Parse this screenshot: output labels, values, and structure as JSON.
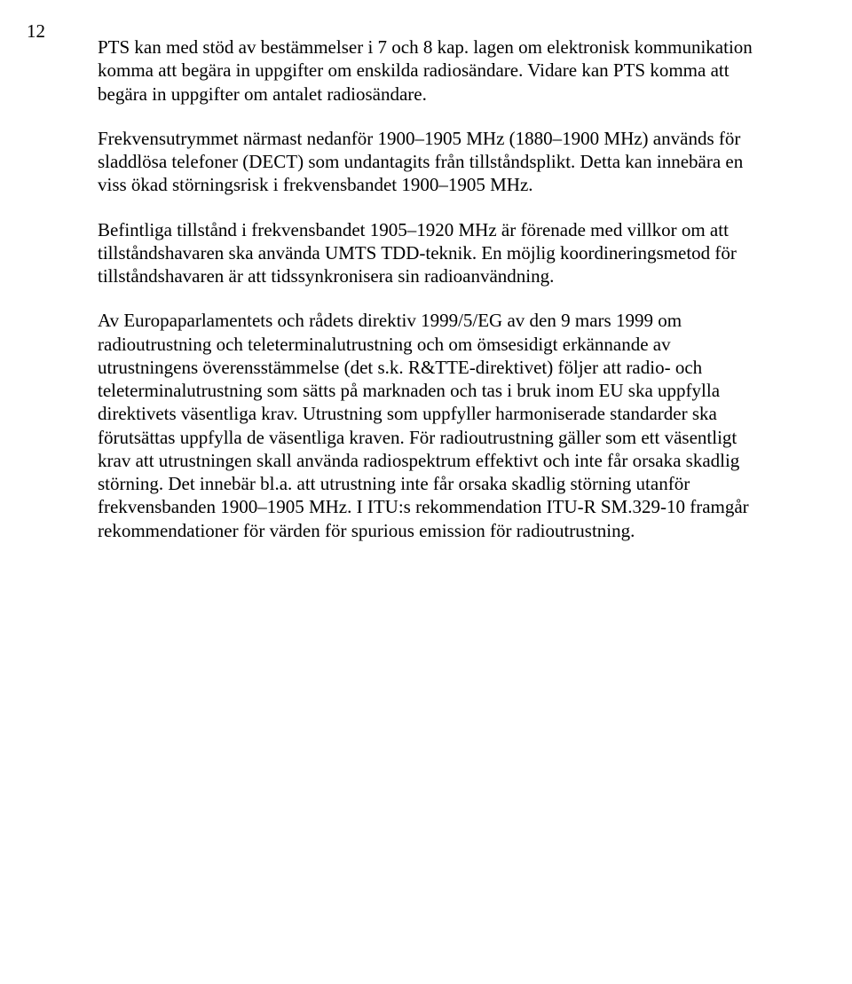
{
  "page_number": "12",
  "paragraphs": [
    "PTS kan med stöd av bestämmelser i 7 och 8 kap. lagen om elektronisk kommunikation komma att begära in uppgifter om enskilda radiosändare. Vidare kan PTS komma att begära in uppgifter om antalet radiosändare.",
    "Frekvensutrymmet närmast nedanför 1900–1905 MHz (1880–1900 MHz) används för sladdlösa telefoner (DECT) som undantagits från tillståndsplikt. Detta kan innebära en viss ökad störningsrisk i frekvensbandet 1900–1905 MHz.",
    "Befintliga tillstånd i frekvensbandet 1905–1920 MHz är förenade med villkor om att tillståndshavaren ska använda UMTS TDD-teknik. En möjlig koordineringsmetod för tillståndshavaren är att tidssynkronisera sin radioanvändning.",
    "Av Europaparlamentets och rådets direktiv 1999/5/EG av den 9 mars 1999 om radioutrustning och teleterminalutrustning och om ömsesidigt erkännande av utrustningens överensstämmelse (det s.k. R&TTE-direktivet) följer att radio- och teleterminalutrustning som sätts på marknaden och tas i bruk inom EU ska uppfylla direktivets väsentliga krav. Utrustning som uppfyller harmoniserade standarder ska förutsättas uppfylla de väsentliga kraven. För radioutrustning gäller som ett väsentligt krav att utrustningen skall använda radiospektrum effektivt och inte får orsaka skadlig störning. Det innebär bl.a. att utrustning inte får orsaka skadlig störning utanför frekvensbanden 1900–1905 MHz. I ITU:s rekommendation ITU-R SM.329-10 framgår rekommendationer för värden för spurious emission för radioutrustning."
  ]
}
